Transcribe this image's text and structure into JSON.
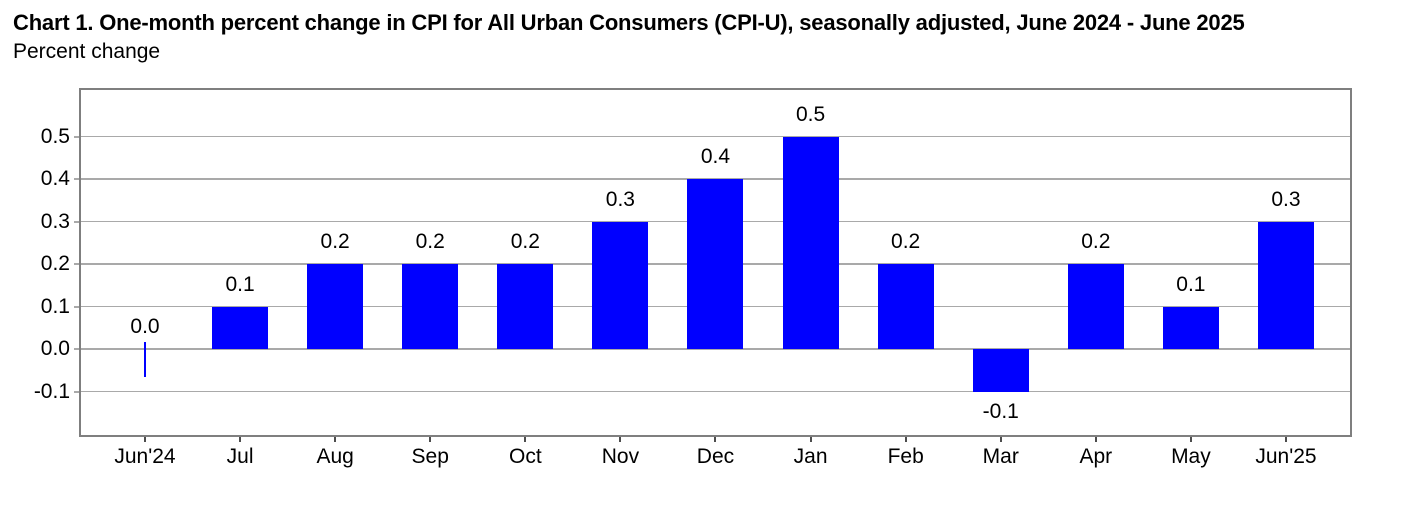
{
  "chart_data": {
    "type": "bar",
    "title": "Chart 1. One-month percent change in CPI for All Urban Consumers (CPI-U), seasonally adjusted, June 2024 - June 2025",
    "subtitle": "Percent change",
    "categories": [
      "Jun'24",
      "Jul",
      "Aug",
      "Sep",
      "Oct",
      "Nov",
      "Dec",
      "Jan",
      "Feb",
      "Mar",
      "Apr",
      "May",
      "Jun'25"
    ],
    "values": [
      0.0,
      0.1,
      0.2,
      0.2,
      0.2,
      0.3,
      0.4,
      0.5,
      0.2,
      -0.1,
      0.2,
      0.1,
      0.3
    ],
    "data_labels": [
      "0.0",
      "0.1",
      "0.2",
      "0.2",
      "0.2",
      "0.3",
      "0.4",
      "0.5",
      "0.2",
      "-0.1",
      "0.2",
      "0.1",
      "0.3"
    ],
    "xlabel": "",
    "ylabel": "Percent change",
    "ylim": [
      -0.21,
      0.61
    ],
    "yticks": [
      0.5,
      0.4,
      0.3,
      0.2,
      0.1,
      0.0,
      -0.1
    ],
    "ytick_labels": [
      "0.5",
      "0.4",
      "0.3",
      "0.2",
      "0.1",
      "0.0",
      "-0.1"
    ],
    "grid": true,
    "legend": false,
    "colors": {
      "bar": "#0000FF",
      "gridline": "#A9A9A9",
      "plot_border": "#7F7F7F",
      "axis_tick": "#4D4D4D",
      "text": "#000000",
      "background": "#FFFFFF"
    }
  }
}
